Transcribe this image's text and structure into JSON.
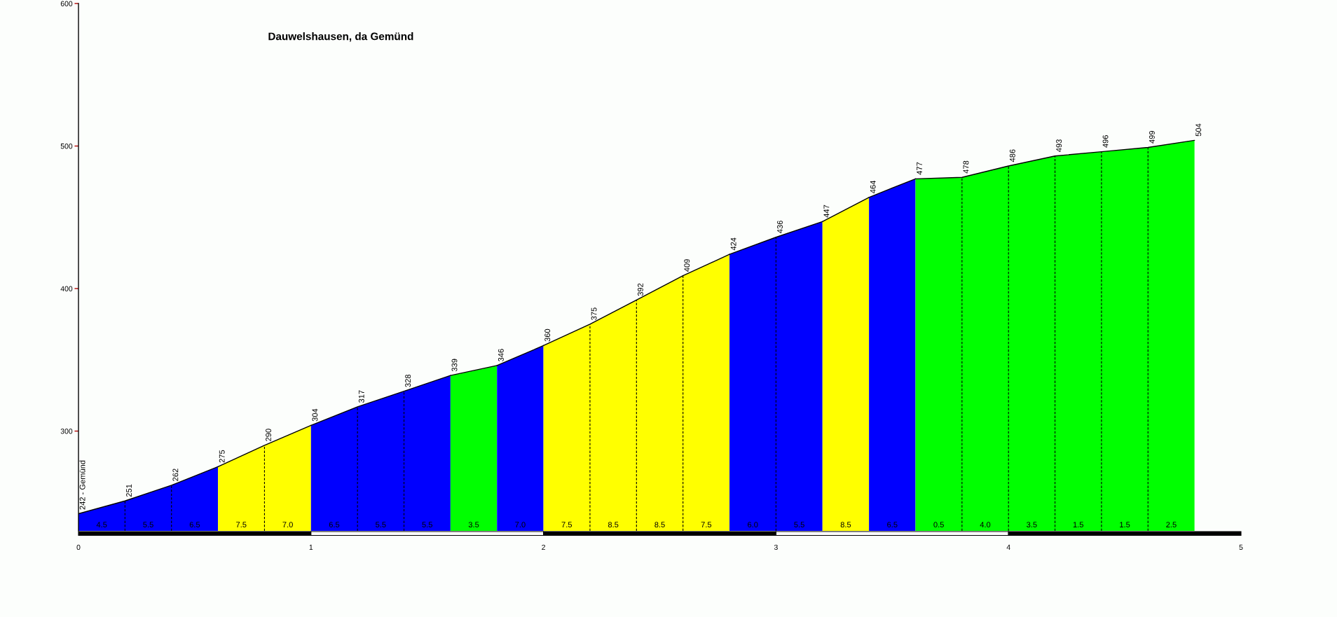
{
  "chart_data": {
    "type": "area",
    "title": "Dauwelshausen, da Gemünd",
    "series": [
      {
        "color": "#0000ff",
        "x": [
          0,
          0.2,
          0.4,
          0.6
        ],
        "values": [
          242,
          251,
          262,
          275
        ],
        "value_labels": [
          "242 - Gemünd",
          "251",
          "262",
          "275"
        ]
      },
      {
        "color": "#ffff00",
        "x": [
          0.6,
          0.8,
          1
        ],
        "values": [
          275,
          290,
          304
        ],
        "value_labels": [
          null,
          "290",
          "304"
        ]
      },
      {
        "color": "#0000ff",
        "x": [
          1,
          1.2,
          1.4,
          1.6
        ],
        "values": [
          304,
          317,
          328,
          339
        ],
        "value_labels": [
          null,
          "317",
          "328",
          "339"
        ]
      },
      {
        "color": "#00ff00",
        "x": [
          1.6,
          1.8
        ],
        "values": [
          339,
          346
        ],
        "value_labels": [
          null,
          "346"
        ]
      },
      {
        "color": "#0000ff",
        "x": [
          1.8,
          2
        ],
        "values": [
          346,
          360
        ],
        "value_labels": [
          null,
          "360"
        ]
      },
      {
        "color": "#ffff00",
        "x": [
          2,
          2.2,
          2.4,
          2.6,
          2.8
        ],
        "values": [
          360,
          375,
          392,
          409,
          424
        ],
        "value_labels": [
          null,
          "375",
          "392",
          "409",
          "424"
        ]
      },
      {
        "color": "#0000ff",
        "x": [
          2.8,
          3,
          3.2
        ],
        "values": [
          424,
          436,
          447
        ],
        "value_labels": [
          null,
          "436",
          "447"
        ]
      },
      {
        "color": "#ffff00",
        "x": [
          3.2,
          3.4
        ],
        "values": [
          447,
          464
        ],
        "value_labels": [
          null,
          "464"
        ]
      },
      {
        "color": "#0000ff",
        "x": [
          3.4,
          3.6
        ],
        "values": [
          464,
          477
        ],
        "value_labels": [
          null,
          "477"
        ]
      },
      {
        "color": "#00ff00",
        "x": [
          3.6,
          3.8,
          4,
          4.2,
          4.4,
          4.6,
          4.8
        ],
        "values": [
          477,
          478,
          486,
          493,
          496,
          499,
          504
        ],
        "value_labels": [
          null,
          "478",
          "486",
          "493",
          "496",
          "499",
          "504"
        ]
      }
    ],
    "annotations": [
      "4.5",
      "5.5",
      "6.5",
      "7.5",
      "7.0",
      "6.5",
      "5.5",
      "5.5",
      "3.5",
      "7.0",
      "7.5",
      "8.5",
      "8.5",
      "7.5",
      "6.0",
      "5.5",
      "8.5",
      "6.5",
      "0.5",
      "4.0",
      "3.5",
      "1.5",
      "1.5",
      "2.5"
    ],
    "xlim": [
      0,
      5
    ],
    "ylim": [
      230,
      600
    ],
    "xticks": [
      0,
      1,
      2,
      3,
      4,
      5
    ],
    "yticks": [
      300,
      400,
      500,
      600
    ],
    "grid": false
  }
}
